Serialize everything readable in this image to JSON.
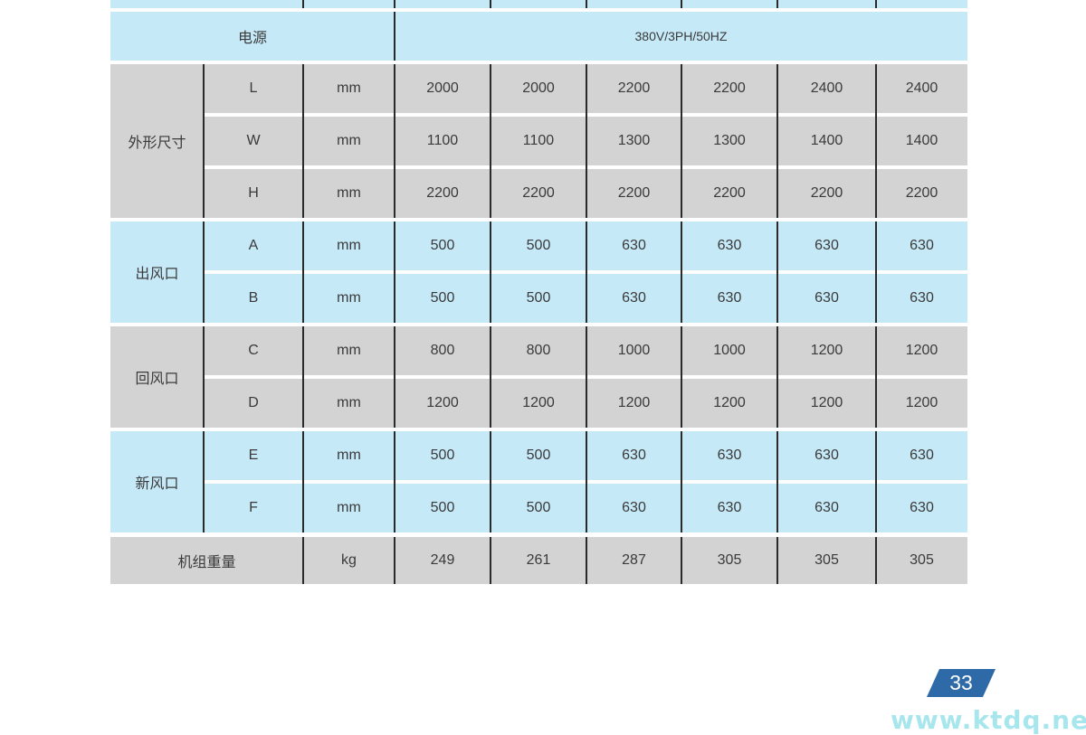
{
  "power": {
    "label": "电源",
    "value": "380V/3PH/50HZ"
  },
  "groups": [
    {
      "label": "外形尺寸",
      "color": "gray",
      "rows": [
        {
          "param": "L",
          "unit": "mm",
          "values": [
            "2000",
            "2000",
            "2200",
            "2200",
            "2400",
            "2400"
          ]
        },
        {
          "param": "W",
          "unit": "mm",
          "values": [
            "1100",
            "1100",
            "1300",
            "1300",
            "1400",
            "1400"
          ]
        },
        {
          "param": "H",
          "unit": "mm",
          "values": [
            "2200",
            "2200",
            "2200",
            "2200",
            "2200",
            "2200"
          ]
        }
      ]
    },
    {
      "label": "出风口",
      "color": "blue",
      "rows": [
        {
          "param": "A",
          "unit": "mm",
          "values": [
            "500",
            "500",
            "630",
            "630",
            "630",
            "630"
          ]
        },
        {
          "param": "B",
          "unit": "mm",
          "values": [
            "500",
            "500",
            "630",
            "630",
            "630",
            "630"
          ]
        }
      ]
    },
    {
      "label": "回风口",
      "color": "gray",
      "rows": [
        {
          "param": "C",
          "unit": "mm",
          "values": [
            "800",
            "800",
            "1000",
            "1000",
            "1200",
            "1200"
          ]
        },
        {
          "param": "D",
          "unit": "mm",
          "values": [
            "1200",
            "1200",
            "1200",
            "1200",
            "1200",
            "1200"
          ]
        }
      ]
    },
    {
      "label": "新风口",
      "color": "blue",
      "rows": [
        {
          "param": "E",
          "unit": "mm",
          "values": [
            "500",
            "500",
            "630",
            "630",
            "630",
            "630"
          ]
        },
        {
          "param": "F",
          "unit": "mm",
          "values": [
            "500",
            "500",
            "630",
            "630",
            "630",
            "630"
          ]
        }
      ]
    }
  ],
  "weight": {
    "label": "机组重量",
    "unit": "kg",
    "values": [
      "249",
      "261",
      "287",
      "305",
      "305",
      "305"
    ]
  },
  "page_number": "33",
  "website": "www.ktdq.net",
  "colors": {
    "blue_row": "#c6e9f8",
    "gray_row": "#d3d3d4",
    "page_badge": "#2f6aa8",
    "website": "#a8e6ee"
  }
}
